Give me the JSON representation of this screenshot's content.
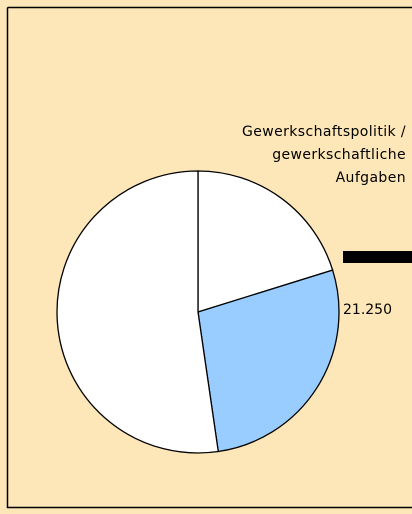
{
  "chart_data": {
    "type": "pie",
    "categories": [
      "Gewerkschaftspolitik /\ngewerkschaftliche\nAufgaben",
      null,
      null
    ],
    "values": [
      15600,
      21250,
      40400
    ],
    "value_labels": [
      null,
      "21.250",
      null
    ],
    "colors": [
      "#ffffff",
      "#99ccff",
      "#ffffff"
    ]
  }
}
